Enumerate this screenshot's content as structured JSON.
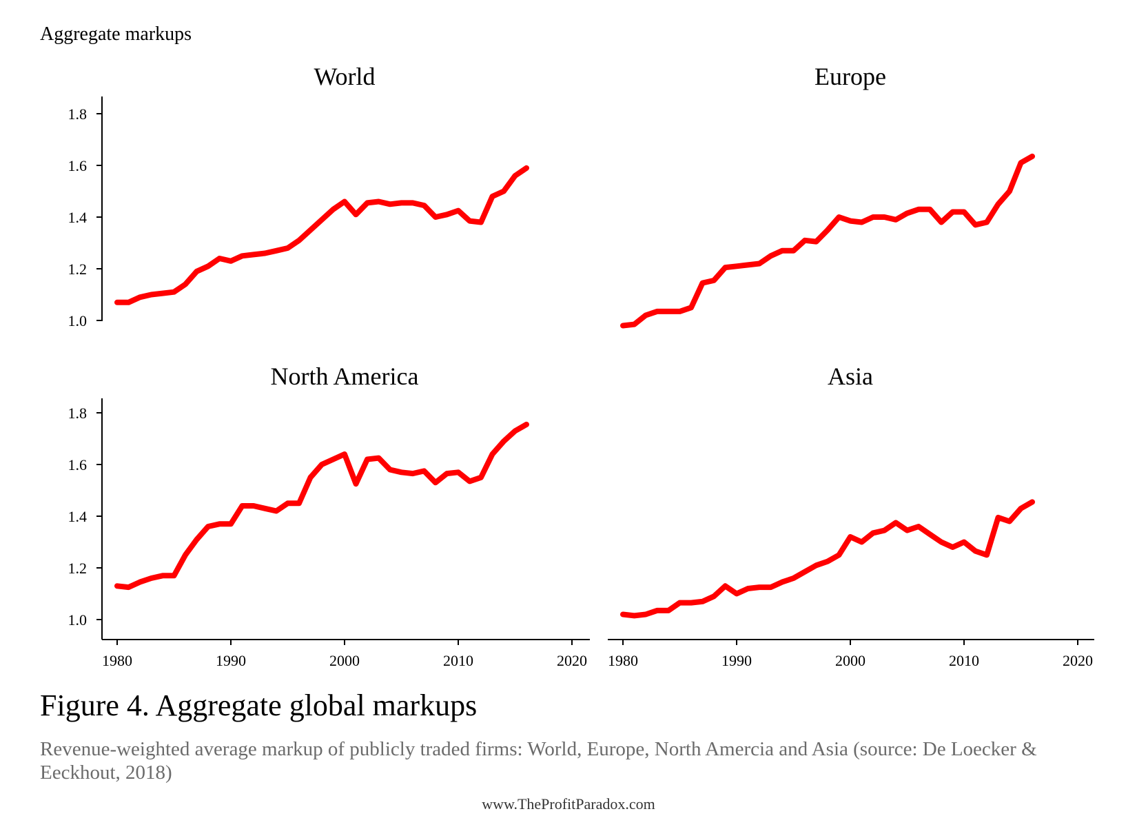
{
  "chart_data": {
    "type": "line",
    "ylabel": "Aggregate markups",
    "series_color": "#ff0000",
    "x_ticks": [
      1980,
      1990,
      2000,
      2010,
      2020
    ],
    "y_ticks": [
      "1.0",
      "1.2",
      "1.4",
      "1.6",
      "1.8"
    ],
    "xlim": [
      1980,
      2020
    ],
    "ylim": [
      0.93,
      1.86
    ],
    "grid": false,
    "x": [
      1980,
      1981,
      1982,
      1983,
      1984,
      1985,
      1986,
      1987,
      1988,
      1989,
      1990,
      1991,
      1992,
      1993,
      1994,
      1995,
      1996,
      1997,
      1998,
      1999,
      2000,
      2001,
      2002,
      2003,
      2004,
      2005,
      2006,
      2007,
      2008,
      2009,
      2010,
      2011,
      2012,
      2013,
      2014,
      2015,
      2016
    ],
    "panels": [
      {
        "title": "World",
        "values": [
          1.07,
          1.07,
          1.09,
          1.1,
          1.105,
          1.11,
          1.14,
          1.19,
          1.21,
          1.24,
          1.23,
          1.25,
          1.255,
          1.26,
          1.27,
          1.28,
          1.31,
          1.35,
          1.39,
          1.43,
          1.46,
          1.41,
          1.455,
          1.46,
          1.45,
          1.455,
          1.455,
          1.445,
          1.4,
          1.41,
          1.425,
          1.385,
          1.38,
          1.48,
          1.5,
          1.56,
          1.59
        ]
      },
      {
        "title": "Europe",
        "values": [
          0.98,
          0.985,
          1.02,
          1.035,
          1.035,
          1.035,
          1.05,
          1.145,
          1.155,
          1.205,
          1.21,
          1.215,
          1.22,
          1.25,
          1.27,
          1.27,
          1.31,
          1.305,
          1.35,
          1.4,
          1.385,
          1.38,
          1.4,
          1.4,
          1.39,
          1.415,
          1.43,
          1.43,
          1.38,
          1.42,
          1.42,
          1.37,
          1.38,
          1.45,
          1.5,
          1.61,
          1.635
        ]
      },
      {
        "title": "North America",
        "values": [
          1.13,
          1.125,
          1.145,
          1.16,
          1.17,
          1.17,
          1.25,
          1.31,
          1.36,
          1.37,
          1.37,
          1.44,
          1.44,
          1.43,
          1.42,
          1.45,
          1.45,
          1.55,
          1.6,
          1.62,
          1.64,
          1.525,
          1.62,
          1.625,
          1.58,
          1.57,
          1.565,
          1.575,
          1.53,
          1.565,
          1.57,
          1.535,
          1.55,
          1.64,
          1.69,
          1.73,
          1.755
        ]
      },
      {
        "title": "Asia",
        "values": [
          1.02,
          1.015,
          1.02,
          1.035,
          1.035,
          1.065,
          1.065,
          1.07,
          1.09,
          1.13,
          1.1,
          1.12,
          1.125,
          1.125,
          1.145,
          1.16,
          1.185,
          1.21,
          1.225,
          1.25,
          1.32,
          1.3,
          1.335,
          1.345,
          1.375,
          1.345,
          1.36,
          1.33,
          1.3,
          1.28,
          1.3,
          1.265,
          1.25,
          1.395,
          1.38,
          1.43,
          1.455
        ]
      }
    ]
  },
  "figure": {
    "caption": "Figure 4. Aggregate global markups",
    "description": "Revenue-weighted average markup of publicly traded firms: World, Europe, North Amercia and Asia (source: De Loecker & Eeckhout, 2018)",
    "credit": "www.TheProfitParadox.com"
  }
}
